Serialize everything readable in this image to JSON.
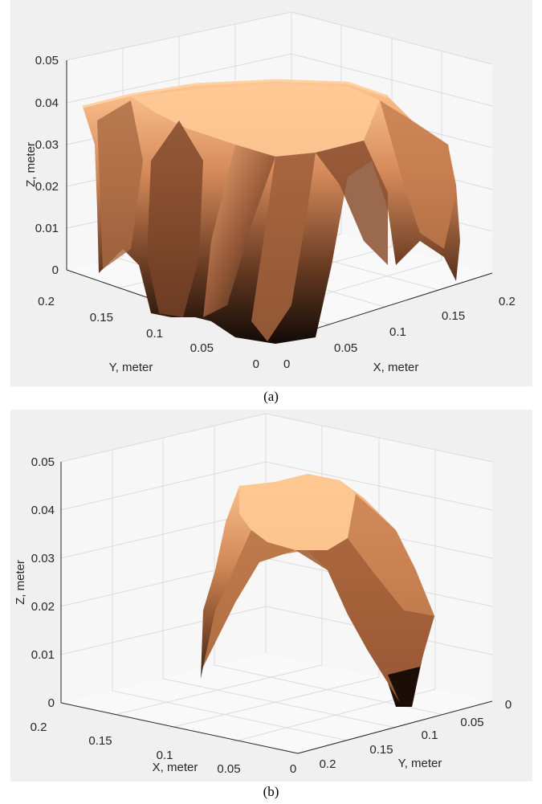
{
  "colors": {
    "background": "#f0f0f0",
    "axis": "#262626",
    "grid": "#dcdcdc",
    "surface_high": "#ffc793",
    "surface_mid": "#b36f4a",
    "surface_low": "#120a06"
  },
  "chart_data": [
    {
      "type": "surface",
      "caption": "(a)",
      "xlabel": "X, meter",
      "ylabel": "Y, meter",
      "zlabel": "Z, meter",
      "xlim": [
        0,
        0.2
      ],
      "ylim": [
        0,
        0.2
      ],
      "zlim": [
        0,
        0.05
      ],
      "x_ticks": [
        "0",
        "0.05",
        "0.1",
        "0.15",
        "0.2"
      ],
      "y_ticks": [
        "0",
        "0.05",
        "0.1",
        "0.15",
        "0.2"
      ],
      "z_ticks": [
        "0",
        "0.01",
        "0.02",
        "0.03",
        "0.04",
        "0.05"
      ],
      "grid": true,
      "colormap": "copper",
      "surface_description_z_max": 0.04,
      "surface_description_z_min": 0
    },
    {
      "type": "surface",
      "caption": "(b)",
      "xlabel": "X, meter",
      "ylabel": "Y, meter",
      "zlabel": "Z, meter",
      "xlim": [
        0,
        0.2
      ],
      "ylim": [
        0,
        0.2
      ],
      "zlim": [
        0,
        0.05
      ],
      "x_ticks": [
        "0",
        "0.05",
        "0.1",
        "0.15",
        "0.2"
      ],
      "y_ticks": [
        "0",
        "0.05",
        "0.1",
        "0.15",
        "0.2"
      ],
      "z_ticks": [
        "0",
        "0.01",
        "0.02",
        "0.03",
        "0.04",
        "0.05"
      ],
      "grid": true,
      "colormap": "copper",
      "surface_description_z_max": 0.045,
      "surface_description_z_min": 0
    }
  ]
}
